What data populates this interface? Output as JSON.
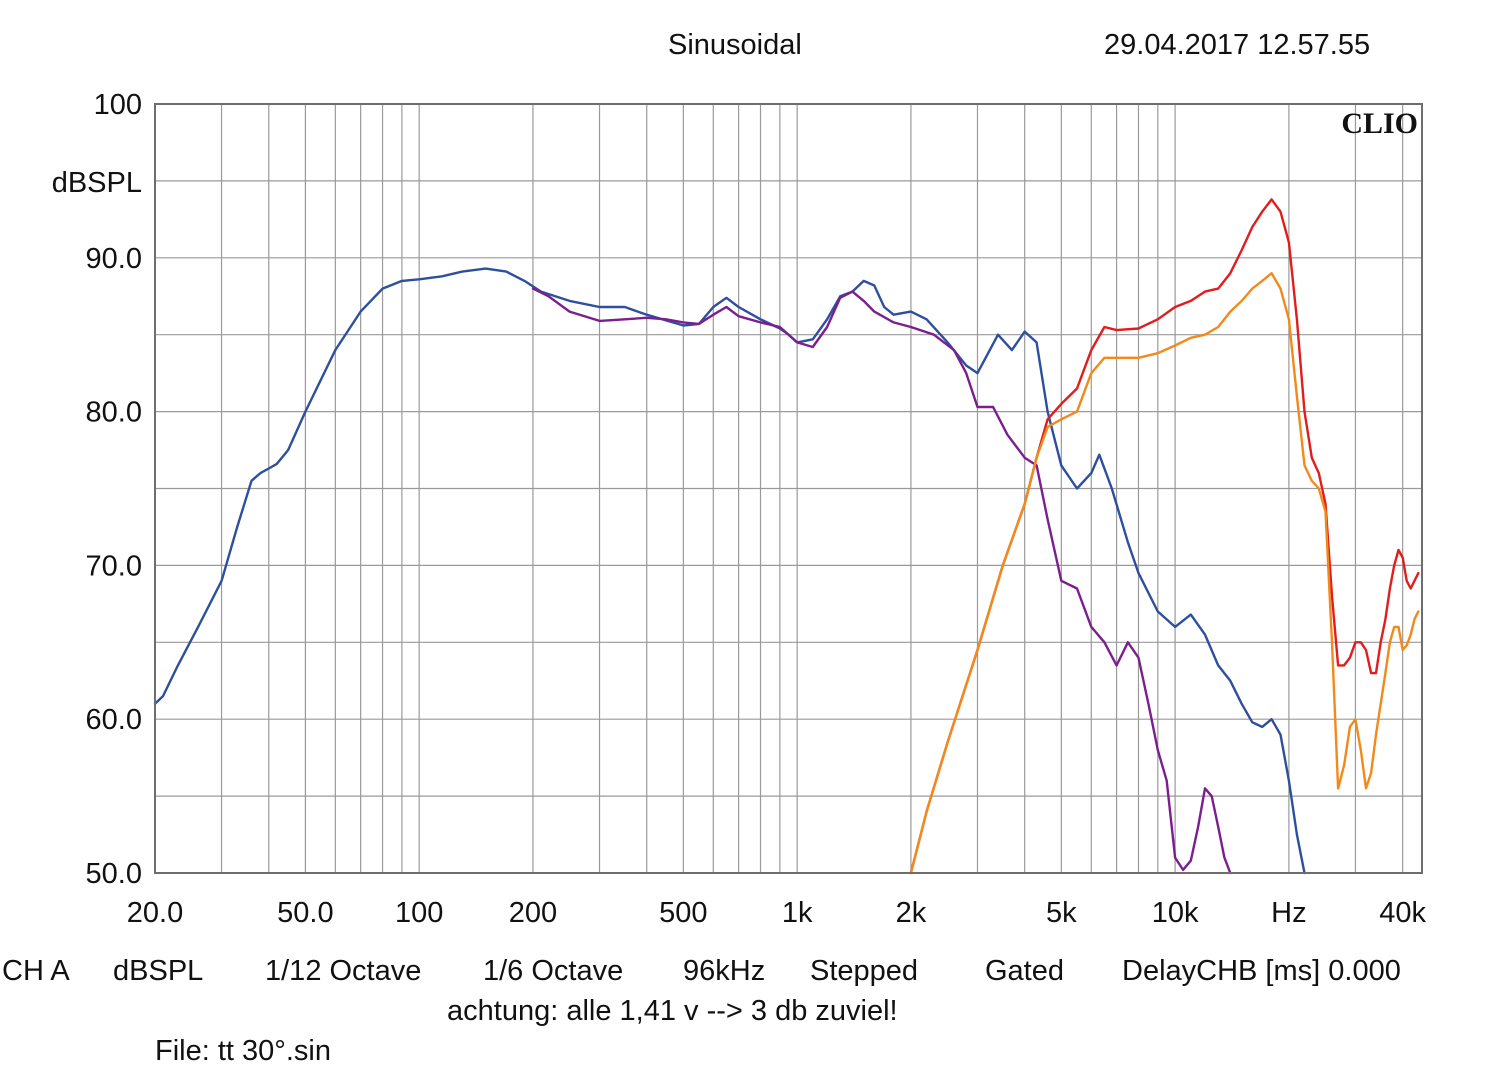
{
  "header": {
    "mode": "Sinusoidal",
    "datetime": "29.04.2017 12.57.55"
  },
  "footer": {
    "channel": "CH A",
    "unit": "dBSPL",
    "smoothing": "1/12 Octave",
    "resolution": "1/6 Octave",
    "sample_rate": "96kHz",
    "stepping": "Stepped",
    "gating": "Gated",
    "delay": "DelayCHB [ms] 0.000",
    "note": "achtung: alle 1,41 v --> 3 db zuviel!",
    "file": "File: tt 30°.sin"
  },
  "colors": {
    "grid": "#9a9a9a",
    "frame": "#6e6e6e",
    "blue": "#2e4f9e",
    "purple": "#7b1f8f",
    "red": "#e11d1d",
    "orange": "#f28a1b"
  },
  "chart_data": {
    "type": "line",
    "brand": "CLIO",
    "ylabel": "dBSPL",
    "xlabel": "Hz",
    "x_scale": "log",
    "xlim": [
      20,
      45000
    ],
    "ylim": [
      50,
      100
    ],
    "grid": true,
    "y_ticks": [
      {
        "value": 100,
        "label": "100"
      },
      {
        "value": 90,
        "label": "90.0"
      },
      {
        "value": 80,
        "label": "80.0"
      },
      {
        "value": 70,
        "label": "70.0"
      },
      {
        "value": 60,
        "label": "60.0"
      },
      {
        "value": 50,
        "label": "50.0"
      }
    ],
    "x_ticks": [
      {
        "value": 20,
        "label": "20.0"
      },
      {
        "value": 50,
        "label": "50.0"
      },
      {
        "value": 100,
        "label": "100"
      },
      {
        "value": 200,
        "label": "200"
      },
      {
        "value": 500,
        "label": "500"
      },
      {
        "value": 1000,
        "label": "1k"
      },
      {
        "value": 2000,
        "label": "2k"
      },
      {
        "value": 5000,
        "label": "5k"
      },
      {
        "value": 10000,
        "label": "10k"
      },
      {
        "value": 20000,
        "label": "Hz"
      },
      {
        "value": 40000,
        "label": "40k"
      }
    ],
    "series": [
      {
        "color": "#2e4f9e",
        "points": [
          [
            20,
            61.0
          ],
          [
            21,
            61.5
          ],
          [
            23,
            63.5
          ],
          [
            26,
            66.0
          ],
          [
            30,
            69.0
          ],
          [
            33,
            72.5
          ],
          [
            36,
            75.5
          ],
          [
            38,
            76.0
          ],
          [
            40,
            76.3
          ],
          [
            42,
            76.6
          ],
          [
            45,
            77.5
          ],
          [
            50,
            80.0
          ],
          [
            60,
            84.0
          ],
          [
            70,
            86.5
          ],
          [
            80,
            88.0
          ],
          [
            90,
            88.5
          ],
          [
            100,
            88.6
          ],
          [
            115,
            88.8
          ],
          [
            130,
            89.1
          ],
          [
            150,
            89.3
          ],
          [
            170,
            89.1
          ],
          [
            190,
            88.5
          ],
          [
            210,
            87.8
          ],
          [
            250,
            87.2
          ],
          [
            300,
            86.8
          ],
          [
            350,
            86.8
          ],
          [
            400,
            86.3
          ],
          [
            500,
            85.6
          ],
          [
            550,
            85.7
          ],
          [
            600,
            86.8
          ],
          [
            650,
            87.4
          ],
          [
            700,
            86.8
          ],
          [
            800,
            86.0
          ],
          [
            900,
            85.4
          ],
          [
            950,
            85.0
          ],
          [
            1000,
            84.5
          ],
          [
            1100,
            84.7
          ],
          [
            1200,
            86.0
          ],
          [
            1300,
            87.5
          ],
          [
            1400,
            87.8
          ],
          [
            1500,
            88.5
          ],
          [
            1600,
            88.2
          ],
          [
            1700,
            86.8
          ],
          [
            1800,
            86.3
          ],
          [
            2000,
            86.5
          ],
          [
            2200,
            86.0
          ],
          [
            2500,
            84.5
          ],
          [
            2800,
            83.0
          ],
          [
            3000,
            82.5
          ],
          [
            3200,
            83.8
          ],
          [
            3400,
            85.0
          ],
          [
            3700,
            84.0
          ],
          [
            4000,
            85.2
          ],
          [
            4300,
            84.5
          ],
          [
            4600,
            80.0
          ],
          [
            5000,
            76.5
          ],
          [
            5500,
            75.0
          ],
          [
            6000,
            76.0
          ],
          [
            6300,
            77.2
          ],
          [
            6800,
            75.0
          ],
          [
            7500,
            71.5
          ],
          [
            8000,
            69.5
          ],
          [
            9000,
            67.0
          ],
          [
            10000,
            66.0
          ],
          [
            11000,
            66.8
          ],
          [
            12000,
            65.5
          ],
          [
            13000,
            63.5
          ],
          [
            14000,
            62.5
          ],
          [
            15000,
            61.0
          ],
          [
            16000,
            59.8
          ],
          [
            17000,
            59.5
          ],
          [
            18000,
            60.0
          ],
          [
            19000,
            59.0
          ],
          [
            20000,
            56.0
          ],
          [
            21000,
            52.5
          ],
          [
            22000,
            50.0
          ]
        ]
      },
      {
        "color": "#7b1f8f",
        "points": [
          [
            200,
            88.0
          ],
          [
            220,
            87.5
          ],
          [
            250,
            86.5
          ],
          [
            300,
            85.9
          ],
          [
            350,
            86.0
          ],
          [
            400,
            86.1
          ],
          [
            450,
            86.0
          ],
          [
            500,
            85.8
          ],
          [
            550,
            85.7
          ],
          [
            600,
            86.3
          ],
          [
            650,
            86.8
          ],
          [
            700,
            86.2
          ],
          [
            800,
            85.8
          ],
          [
            900,
            85.5
          ],
          [
            1000,
            84.5
          ],
          [
            1100,
            84.2
          ],
          [
            1200,
            85.5
          ],
          [
            1300,
            87.4
          ],
          [
            1400,
            87.8
          ],
          [
            1500,
            87.2
          ],
          [
            1600,
            86.5
          ],
          [
            1800,
            85.8
          ],
          [
            2000,
            85.5
          ],
          [
            2300,
            85.0
          ],
          [
            2600,
            84.0
          ],
          [
            2800,
            82.5
          ],
          [
            3000,
            80.3
          ],
          [
            3300,
            80.3
          ],
          [
            3600,
            78.5
          ],
          [
            4000,
            77.0
          ],
          [
            4300,
            76.5
          ],
          [
            4600,
            73.0
          ],
          [
            5000,
            69.0
          ],
          [
            5500,
            68.5
          ],
          [
            6000,
            66.0
          ],
          [
            6500,
            65.0
          ],
          [
            7000,
            63.5
          ],
          [
            7500,
            65.0
          ],
          [
            8000,
            64.0
          ],
          [
            8500,
            61.0
          ],
          [
            9000,
            58.0
          ],
          [
            9500,
            56.0
          ],
          [
            10000,
            51.0
          ],
          [
            10500,
            50.2
          ],
          [
            11000,
            50.8
          ],
          [
            11500,
            53.0
          ],
          [
            12000,
            55.5
          ],
          [
            12500,
            55.0
          ],
          [
            13000,
            53.0
          ],
          [
            13500,
            51.0
          ],
          [
            14000,
            50.0
          ]
        ]
      },
      {
        "color": "#e11d1d",
        "points": [
          [
            2000,
            50.0
          ],
          [
            2200,
            54.0
          ],
          [
            2500,
            58.5
          ],
          [
            3000,
            64.5
          ],
          [
            3500,
            70.0
          ],
          [
            4000,
            74.0
          ],
          [
            4300,
            77.0
          ],
          [
            4600,
            79.5
          ],
          [
            5000,
            80.5
          ],
          [
            5500,
            81.5
          ],
          [
            6000,
            84.0
          ],
          [
            6500,
            85.5
          ],
          [
            7000,
            85.3
          ],
          [
            8000,
            85.4
          ],
          [
            9000,
            86.0
          ],
          [
            10000,
            86.8
          ],
          [
            11000,
            87.2
          ],
          [
            12000,
            87.8
          ],
          [
            13000,
            88.0
          ],
          [
            14000,
            89.0
          ],
          [
            15000,
            90.5
          ],
          [
            16000,
            92.0
          ],
          [
            17000,
            93.0
          ],
          [
            18000,
            93.8
          ],
          [
            19000,
            93.0
          ],
          [
            20000,
            91.0
          ],
          [
            21000,
            86.0
          ],
          [
            22000,
            80.0
          ],
          [
            23000,
            77.0
          ],
          [
            24000,
            76.0
          ],
          [
            25000,
            74.0
          ],
          [
            26000,
            68.0
          ],
          [
            27000,
            63.5
          ],
          [
            28000,
            63.5
          ],
          [
            29000,
            64.0
          ],
          [
            30000,
            65.0
          ],
          [
            31000,
            65.0
          ],
          [
            32000,
            64.5
          ],
          [
            33000,
            63.0
          ],
          [
            34000,
            63.0
          ],
          [
            35000,
            65.0
          ],
          [
            36000,
            66.5
          ],
          [
            37000,
            68.5
          ],
          [
            38000,
            70.0
          ],
          [
            39000,
            71.0
          ],
          [
            40000,
            70.5
          ],
          [
            41000,
            69.0
          ],
          [
            42000,
            68.5
          ],
          [
            43000,
            69.0
          ],
          [
            44000,
            69.5
          ]
        ]
      },
      {
        "color": "#f28a1b",
        "points": [
          [
            2000,
            50.0
          ],
          [
            2200,
            54.0
          ],
          [
            2500,
            58.5
          ],
          [
            3000,
            64.5
          ],
          [
            3500,
            70.0
          ],
          [
            4000,
            74.0
          ],
          [
            4300,
            77.0
          ],
          [
            4600,
            79.0
          ],
          [
            5000,
            79.5
          ],
          [
            5500,
            80.0
          ],
          [
            6000,
            82.5
          ],
          [
            6500,
            83.5
          ],
          [
            7000,
            83.5
          ],
          [
            8000,
            83.5
          ],
          [
            9000,
            83.8
          ],
          [
            10000,
            84.3
          ],
          [
            11000,
            84.8
          ],
          [
            12000,
            85.0
          ],
          [
            13000,
            85.5
          ],
          [
            14000,
            86.5
          ],
          [
            15000,
            87.2
          ],
          [
            16000,
            88.0
          ],
          [
            17000,
            88.5
          ],
          [
            18000,
            89.0
          ],
          [
            19000,
            88.0
          ],
          [
            20000,
            86.0
          ],
          [
            21000,
            81.0
          ],
          [
            22000,
            76.5
          ],
          [
            23000,
            75.5
          ],
          [
            24000,
            75.0
          ],
          [
            25000,
            73.5
          ],
          [
            26000,
            65.0
          ],
          [
            27000,
            55.5
          ],
          [
            28000,
            57.0
          ],
          [
            29000,
            59.5
          ],
          [
            30000,
            60.0
          ],
          [
            31000,
            58.0
          ],
          [
            32000,
            55.5
          ],
          [
            33000,
            56.5
          ],
          [
            34000,
            59.0
          ],
          [
            35000,
            61.0
          ],
          [
            36000,
            63.0
          ],
          [
            37000,
            65.0
          ],
          [
            38000,
            66.0
          ],
          [
            39000,
            66.0
          ],
          [
            40000,
            64.5
          ],
          [
            41000,
            64.8
          ],
          [
            42000,
            65.5
          ],
          [
            43000,
            66.5
          ],
          [
            44000,
            67.0
          ]
        ]
      }
    ]
  }
}
